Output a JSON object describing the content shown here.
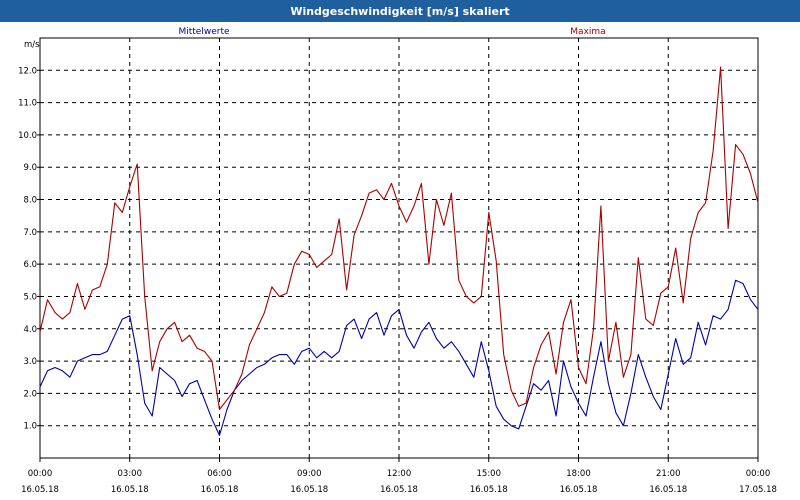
{
  "chart_data": {
    "type": "line",
    "title": "Windgeschwindigkeit [m/s] skaliert",
    "ylabel": "m/s",
    "ylim": [
      0,
      13
    ],
    "yticks": [
      "1.0",
      "2.0",
      "3.0",
      "4.0",
      "5.0",
      "6.0",
      "7.0",
      "8.0",
      "9.0",
      "10.0",
      "11.0",
      "12.0"
    ],
    "xlim_hours": [
      0,
      24
    ],
    "xticks": [
      {
        "time": "00:00",
        "date": "16.05.18"
      },
      {
        "time": "03:00",
        "date": "16.05.18"
      },
      {
        "time": "06:00",
        "date": "16.05.18"
      },
      {
        "time": "09:00",
        "date": "16.05.18"
      },
      {
        "time": "12:00",
        "date": "16.05.18"
      },
      {
        "time": "15:00",
        "date": "16.05.18"
      },
      {
        "time": "18:00",
        "date": "16.05.18"
      },
      {
        "time": "21:00",
        "date": "16.05.18"
      },
      {
        "time": "00:00",
        "date": "17.05.18"
      }
    ],
    "grid": true,
    "series": [
      {
        "name": "Mittelwerte",
        "color": "#0000aa",
        "x_hours": [
          0,
          0.25,
          0.5,
          0.75,
          1,
          1.25,
          1.5,
          1.75,
          2,
          2.25,
          2.5,
          2.75,
          3,
          3.25,
          3.5,
          3.75,
          4,
          4.25,
          4.5,
          4.75,
          5,
          5.25,
          5.5,
          5.75,
          6,
          6.25,
          6.5,
          6.75,
          7,
          7.25,
          7.5,
          7.75,
          8,
          8.25,
          8.5,
          8.75,
          9,
          9.25,
          9.5,
          9.75,
          10,
          10.25,
          10.5,
          10.75,
          11,
          11.25,
          11.5,
          11.75,
          12,
          12.25,
          12.5,
          12.75,
          13,
          13.25,
          13.5,
          13.75,
          14,
          14.25,
          14.5,
          14.75,
          15,
          15.25,
          15.5,
          15.75,
          16,
          16.25,
          16.5,
          16.75,
          17,
          17.25,
          17.5,
          17.75,
          18,
          18.25,
          18.5,
          18.75,
          19,
          19.25,
          19.5,
          19.75,
          20,
          20.25,
          20.5,
          20.75,
          21,
          21.25,
          21.5,
          21.75,
          22,
          22.25,
          22.5,
          22.75,
          23,
          23.25,
          23.5,
          23.75,
          24
        ],
        "values": [
          2.2,
          2.7,
          2.8,
          2.7,
          2.5,
          3.0,
          3.1,
          3.2,
          3.2,
          3.3,
          3.8,
          4.3,
          4.4,
          3.2,
          1.7,
          1.3,
          2.8,
          2.6,
          2.4,
          1.9,
          2.3,
          2.4,
          1.8,
          1.2,
          0.7,
          1.5,
          2.1,
          2.4,
          2.6,
          2.8,
          2.9,
          3.1,
          3.2,
          3.2,
          2.9,
          3.3,
          3.4,
          3.1,
          3.3,
          3.1,
          3.3,
          4.1,
          4.3,
          3.7,
          4.3,
          4.5,
          3.8,
          4.4,
          4.6,
          3.8,
          3.4,
          3.9,
          4.2,
          3.7,
          3.4,
          3.6,
          3.3,
          2.9,
          2.5,
          3.6,
          2.7,
          1.6,
          1.2,
          1.0,
          0.9,
          1.6,
          2.3,
          2.1,
          2.4,
          1.3,
          3.0,
          2.2,
          1.7,
          1.3,
          2.5,
          3.6,
          2.3,
          1.4,
          1.0,
          2.0,
          3.2,
          2.5,
          1.9,
          1.5,
          2.6,
          3.7,
          2.9,
          3.1,
          4.2,
          3.5,
          4.4,
          4.3,
          4.6,
          5.5,
          5.4,
          4.9,
          4.6
        ]
      },
      {
        "name": "Maxima",
        "color": "#aa0000",
        "x_hours": [
          0,
          0.25,
          0.5,
          0.75,
          1,
          1.25,
          1.5,
          1.75,
          2,
          2.25,
          2.5,
          2.75,
          3,
          3.25,
          3.5,
          3.75,
          4,
          4.25,
          4.5,
          4.75,
          5,
          5.25,
          5.5,
          5.75,
          6,
          6.25,
          6.5,
          6.75,
          7,
          7.25,
          7.5,
          7.75,
          8,
          8.25,
          8.5,
          8.75,
          9,
          9.25,
          9.5,
          9.75,
          10,
          10.25,
          10.5,
          10.75,
          11,
          11.25,
          11.5,
          11.75,
          12,
          12.25,
          12.5,
          12.75,
          13,
          13.25,
          13.5,
          13.75,
          14,
          14.25,
          14.5,
          14.75,
          15,
          15.25,
          15.5,
          15.75,
          16,
          16.25,
          16.5,
          16.75,
          17,
          17.25,
          17.5,
          17.75,
          18,
          18.25,
          18.5,
          18.75,
          19,
          19.25,
          19.5,
          19.75,
          20,
          20.25,
          20.5,
          20.75,
          21,
          21.25,
          21.5,
          21.75,
          22,
          22.25,
          22.5,
          22.75,
          23,
          23.25,
          23.5,
          23.75,
          24
        ],
        "values": [
          3.9,
          4.9,
          4.5,
          4.3,
          4.5,
          5.4,
          4.6,
          5.2,
          5.3,
          6.0,
          7.9,
          7.6,
          8.4,
          9.1,
          5.0,
          2.7,
          3.6,
          4.0,
          4.2,
          3.6,
          3.8,
          3.4,
          3.3,
          3.0,
          1.5,
          1.8,
          2.1,
          2.6,
          3.5,
          4.0,
          4.5,
          5.3,
          5.0,
          5.1,
          6.0,
          6.4,
          6.3,
          5.9,
          6.1,
          6.3,
          7.4,
          5.2,
          6.9,
          7.5,
          8.2,
          8.3,
          8.0,
          8.5,
          7.8,
          7.3,
          7.8,
          8.5,
          6.0,
          8.0,
          7.2,
          8.2,
          5.5,
          5.0,
          4.8,
          5.0,
          7.6,
          6.1,
          3.2,
          2.1,
          1.6,
          1.7,
          2.8,
          3.5,
          3.9,
          2.6,
          4.2,
          4.9,
          2.8,
          2.3,
          4.0,
          7.8,
          3.0,
          4.2,
          2.5,
          3.2,
          6.2,
          4.3,
          4.1,
          5.1,
          5.3,
          6.5,
          4.8,
          6.8,
          7.6,
          7.9,
          9.5,
          12.1,
          7.1,
          9.7,
          9.4,
          8.8,
          7.9
        ]
      }
    ]
  }
}
